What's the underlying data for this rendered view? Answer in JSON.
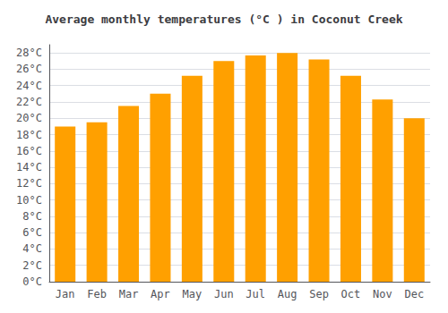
{
  "chart_data": {
    "type": "bar",
    "title": "Average monthly temperatures (°C ) in Coconut Creek",
    "categories": [
      "Jan",
      "Feb",
      "Mar",
      "Apr",
      "May",
      "Jun",
      "Jul",
      "Aug",
      "Sep",
      "Oct",
      "Nov",
      "Dec"
    ],
    "values": [
      19.0,
      19.5,
      21.5,
      23.0,
      25.2,
      27.0,
      27.7,
      28.0,
      27.2,
      25.2,
      22.3,
      20.0
    ],
    "color": "#FFA000",
    "ylim": [
      0,
      29
    ],
    "yticks": [
      {
        "value": 0,
        "label": "0°C"
      },
      {
        "value": 2,
        "label": "2°C"
      },
      {
        "value": 4,
        "label": "4°C"
      },
      {
        "value": 6,
        "label": "6°C"
      },
      {
        "value": 8,
        "label": "8°C"
      },
      {
        "value": 10,
        "label": "10°C"
      },
      {
        "value": 12,
        "label": "12°C"
      },
      {
        "value": 14,
        "label": "14°C"
      },
      {
        "value": 16,
        "label": "16°C"
      },
      {
        "value": 18,
        "label": "18°C"
      },
      {
        "value": 20,
        "label": "20°C"
      },
      {
        "value": 22,
        "label": "22°C"
      },
      {
        "value": 24,
        "label": "24°C"
      },
      {
        "value": 26,
        "label": "26°C"
      },
      {
        "value": 28,
        "label": "28°C"
      }
    ],
    "grid": true
  }
}
